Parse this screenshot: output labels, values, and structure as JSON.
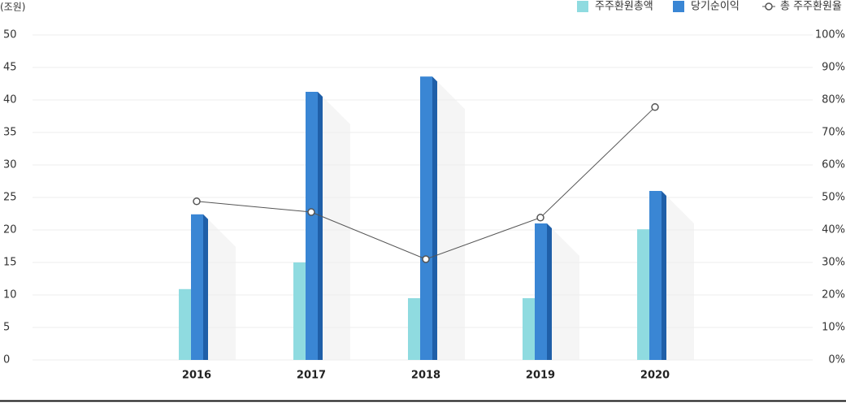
{
  "chart_data": {
    "type": "bar",
    "unit_label": "(조원)",
    "categories": [
      "2016",
      "2017",
      "2018",
      "2019",
      "2020"
    ],
    "series": [
      {
        "name": "주주환원총액",
        "color": "#8fdbe0",
        "values": [
          10.9,
          15,
          9.5,
          9.5,
          20.1
        ]
      },
      {
        "name": "당기순이익",
        "color": "#3a86d4",
        "values": [
          22.4,
          41.25,
          43.6,
          21,
          26
        ]
      },
      {
        "name": "총 주주환원율",
        "color": "#555555",
        "type": "line",
        "axis": "y2",
        "values": [
          48.8,
          45.5,
          31,
          43.8,
          77.8
        ]
      }
    ],
    "ylim": [
      0,
      50
    ],
    "yticks": [
      0,
      5,
      10,
      15,
      20,
      25,
      30,
      35,
      40,
      45,
      50
    ],
    "y2lim": [
      0,
      100
    ],
    "y2ticks": [
      {
        "value": 0,
        "label": "0%"
      },
      {
        "value": 10,
        "label": "10%"
      },
      {
        "value": 20,
        "label": "20%"
      },
      {
        "value": 30,
        "label": "30%"
      },
      {
        "value": 40,
        "label": "40%"
      },
      {
        "value": 50,
        "label": "50%"
      },
      {
        "value": 60,
        "label": "60%"
      },
      {
        "value": 70,
        "label": "70%"
      },
      {
        "value": 80,
        "label": "80%"
      },
      {
        "value": 90,
        "label": "90%"
      },
      {
        "value": 100,
        "label": "100%"
      }
    ],
    "grid": true,
    "legend": "top-right"
  }
}
